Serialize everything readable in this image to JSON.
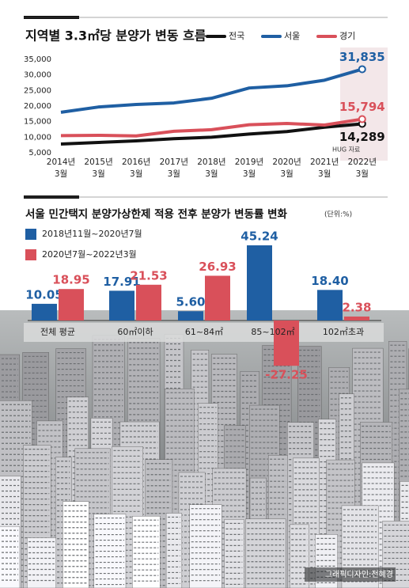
{
  "chart_data": [
    {
      "type": "line",
      "title": "지역별 3.3㎡당 분양가 변동 흐름",
      "categories": [
        [
          "2014년",
          "3월"
        ],
        [
          "2015년",
          "3월"
        ],
        [
          "2016년",
          "3월"
        ],
        [
          "2017년",
          "3월"
        ],
        [
          "2018년",
          "3월"
        ],
        [
          "2019년",
          "3월"
        ],
        [
          "2020년",
          "3월"
        ],
        [
          "2021년",
          "3월"
        ],
        [
          "2022년",
          "3월"
        ]
      ],
      "series": [
        {
          "name": "전국",
          "color": "#111111",
          "values": [
            7800,
            8300,
            8800,
            9500,
            10000,
            11000,
            11800,
            13200,
            14289
          ],
          "value_labels": [
            null,
            null,
            null,
            null,
            null,
            null,
            null,
            null,
            "14,289"
          ]
        },
        {
          "name": "서울",
          "color": "#1f5fa3",
          "values": [
            18000,
            19700,
            20500,
            21000,
            22500,
            25800,
            26500,
            28300,
            31835
          ],
          "value_labels": [
            null,
            null,
            null,
            null,
            null,
            null,
            null,
            null,
            "31,835"
          ]
        },
        {
          "name": "경기",
          "color": "#d9505a",
          "values": [
            10500,
            10600,
            10400,
            11900,
            12400,
            14000,
            14400,
            13900,
            15794
          ],
          "value_labels": [
            null,
            null,
            null,
            null,
            null,
            null,
            null,
            null,
            "15,794"
          ]
        }
      ],
      "ylim": [
        5000,
        35000
      ],
      "yticks": [
        {
          "value": 5000,
          "label": "5,000"
        },
        {
          "value": 10000,
          "label": "10,000"
        },
        {
          "value": 15000,
          "label": "15,000"
        },
        {
          "value": 20000,
          "label": "20,000"
        },
        {
          "value": 25000,
          "label": "25,000"
        },
        {
          "value": 30000,
          "label": "30,000"
        },
        {
          "value": 35000,
          "label": "35,000"
        }
      ],
      "grid": false,
      "legend": "top-right",
      "annotation": "HUG 자료"
    },
    {
      "type": "bar",
      "title": "서울 민간택지 분양가상한제 적용 전후 분양가 변동률 변화",
      "unit": "(단위:%)",
      "categories": [
        "전체 평균",
        "60㎡이하",
        "61~84㎡",
        "85~102㎡",
        "102㎡초과"
      ],
      "series": [
        {
          "name": "2018년11월~2020년7월",
          "color": "#1f5fa3",
          "values": [
            10.05,
            17.91,
            5.6,
            45.24,
            18.4
          ],
          "value_labels": [
            "10.05",
            "17.91",
            "5.60",
            "45.24",
            "18.40"
          ]
        },
        {
          "name": "2020년7월~2022년3월",
          "color": "#d9505a",
          "values": [
            18.95,
            21.53,
            26.93,
            -27.25,
            2.38
          ],
          "value_labels": [
            "18.95",
            "21.53",
            "26.93",
            "-27.25",
            "2.38"
          ]
        }
      ],
      "legend": "top-left",
      "credit": "그래픽디자인:전혜경"
    }
  ]
}
